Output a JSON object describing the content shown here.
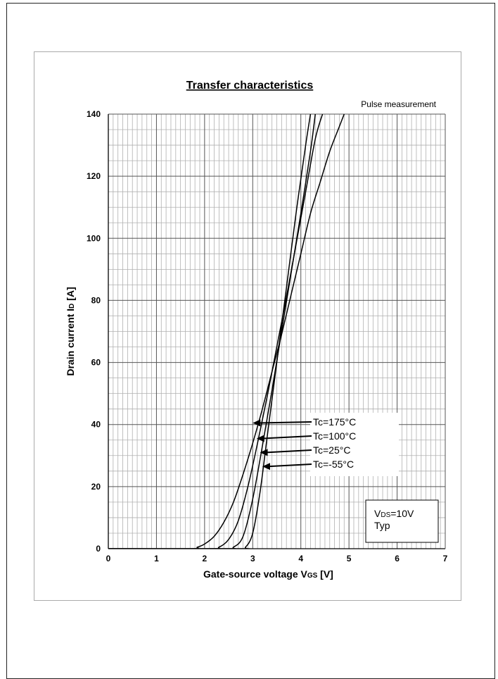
{
  "chart_data": {
    "type": "line",
    "title": "Transfer characteristics",
    "note": "Pulse measurement",
    "xlabel": "Gate-source voltage",
    "xlabel_symbol": {
      "main": "V",
      "sub": "GS"
    },
    "xlabel_unit": "[V]",
    "ylabel": "Drain current",
    "ylabel_symbol": {
      "main": "I",
      "sub": "D"
    },
    "ylabel_unit": "[A]",
    "xlim": [
      0,
      7
    ],
    "ylim": [
      0,
      140
    ],
    "xticks": [
      "0",
      "1",
      "2",
      "3",
      "4",
      "5",
      "6",
      "7"
    ],
    "yticks": [
      "0",
      "20",
      "40",
      "60",
      "80",
      "100",
      "120",
      "140"
    ],
    "grid": true,
    "conditions": {
      "line1_main": "V",
      "line1_sub": "DS",
      "line1_rest": "=10V",
      "line2": "Typ"
    },
    "series": [
      {
        "name": "Tc=175°C",
        "x": [
          0,
          1.7,
          1.85,
          2.0,
          2.2,
          2.4,
          2.6,
          2.8,
          3.0,
          3.2,
          3.4,
          3.6,
          3.8,
          4.0,
          4.2,
          4.4,
          4.6,
          4.8,
          4.9
        ],
        "y": [
          0,
          0,
          0.5,
          1.5,
          4,
          8.5,
          15,
          24,
          34,
          45,
          57,
          69,
          82,
          95,
          108,
          118,
          128,
          136,
          140
        ]
      },
      {
        "name": "Tc=100°C",
        "x": [
          0,
          2.1,
          2.3,
          2.5,
          2.7,
          2.9,
          3.1,
          3.3,
          3.5,
          3.7,
          3.9,
          4.1,
          4.3,
          4.45
        ],
        "y": [
          0,
          0,
          0.5,
          3,
          9,
          20,
          34,
          49,
          65,
          81,
          98,
          115,
          132,
          140
        ]
      },
      {
        "name": "Tc=25°C",
        "x": [
          0,
          2.4,
          2.6,
          2.8,
          3.0,
          3.2,
          3.4,
          3.6,
          3.8,
          4.0,
          4.2,
          4.3
        ],
        "y": [
          0,
          0,
          0.5,
          4,
          16,
          33,
          51,
          70,
          89,
          108,
          128,
          140
        ]
      },
      {
        "name": "Tc=-55°C",
        "x": [
          0,
          2.7,
          2.85,
          3.0,
          3.15,
          3.3,
          3.5,
          3.7,
          3.9,
          4.1,
          4.2
        ],
        "y": [
          0,
          0,
          0.5,
          5,
          18,
          36,
          60,
          84,
          108,
          130,
          140
        ]
      }
    ],
    "annotations": [
      {
        "label": "Tc=175°C",
        "target": [
          3.0,
          40.5
        ]
      },
      {
        "label": "Tc=100°C",
        "target": [
          3.08,
          35.5
        ]
      },
      {
        "label": "Tc=25°C",
        "target": [
          3.15,
          31
        ]
      },
      {
        "label": "Tc=-55°C",
        "target": [
          3.2,
          26.5
        ]
      }
    ]
  }
}
